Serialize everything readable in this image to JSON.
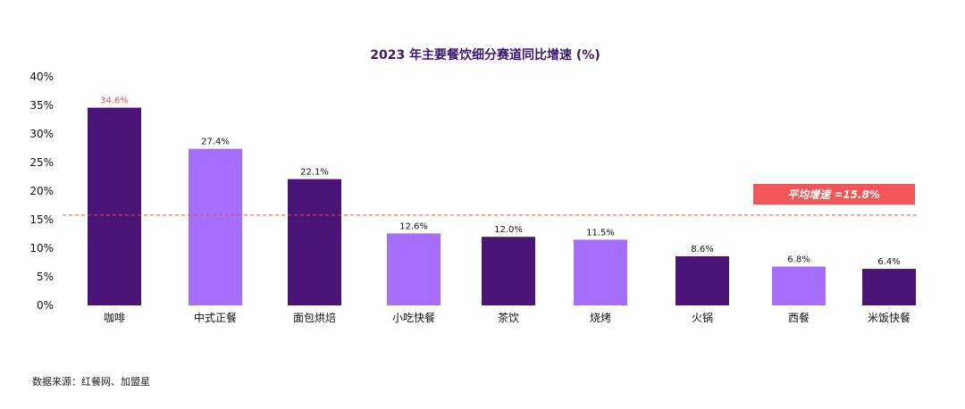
{
  "chart_data": {
    "type": "bar",
    "title": "2023 年主要餐饮细分赛道同比增速 (%)",
    "xlabel": "",
    "ylabel": "",
    "ylim": [
      0,
      40
    ],
    "yticks": [
      "0%",
      "5%",
      "10%",
      "15%",
      "20%",
      "25%",
      "30%",
      "35%",
      "40%"
    ],
    "ytick_values": [
      0,
      5,
      10,
      15,
      20,
      25,
      30,
      35,
      40
    ],
    "categories": [
      "咖啡",
      "中式正餐",
      "面包烘焙",
      "小吃快餐",
      "茶饮",
      "烧烤",
      "火锅",
      "西餐",
      "米饭快餐"
    ],
    "values": [
      34.6,
      27.4,
      22.1,
      12.6,
      12.0,
      11.5,
      8.6,
      6.8,
      6.4
    ],
    "value_labels": [
      "34.6%",
      "27.4%",
      "22.1%",
      "12.6%",
      "12.0%",
      "11.5%",
      "8.6%",
      "6.8%",
      "6.4%"
    ],
    "highlight_label_index": 0,
    "bar_colors": [
      "#4b1577",
      "#a56efc",
      "#4b1577",
      "#a56efc",
      "#4b1577",
      "#a56efc",
      "#4b1577",
      "#a56efc",
      "#4b1577"
    ],
    "average": {
      "value": 15.8,
      "label": "平均增速 =15.8%",
      "line_color": "#e84a4a",
      "box_color": "#f25656"
    },
    "grid": false
  },
  "footer": {
    "source": "数据来源：红餐网、加盟星"
  }
}
